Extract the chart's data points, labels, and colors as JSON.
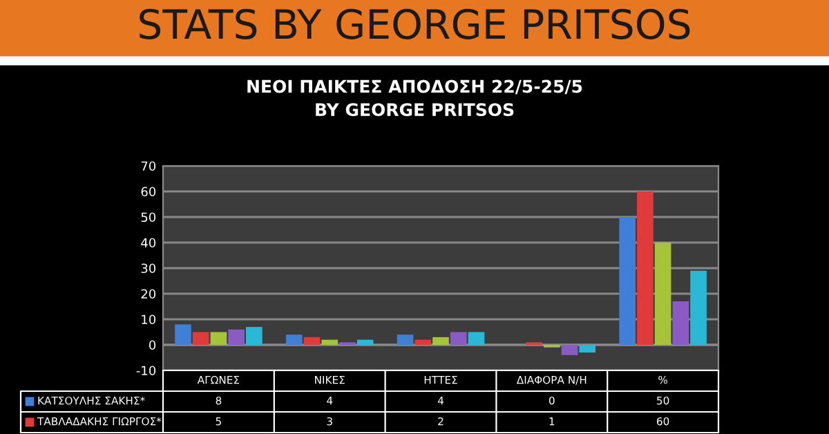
{
  "chart_data": {
    "type": "bar",
    "title": "STATS BY GEORGE PRITSOS",
    "subtitle": "ΝΕΟΙ ΠΑΙΚΤΕΣ ΑΠΟΔΟΣΗ 22/5-25/5\nBY GEORGE PRITSOS",
    "categories": [
      "ΑΓΩΝΕΣ",
      "ΝΙΚΕΣ",
      "ΗΤΤΕΣ",
      "ΔΙΑΦΟΡΑ Ν/Η",
      "%"
    ],
    "series": [
      {
        "name": "ΚΑΤΣΟΥΛΗΣ ΣΑΚΗΣ*",
        "color": "#3f7fd6",
        "values": [
          8,
          4,
          4,
          0,
          50
        ],
        "value_labels": [
          "8",
          "4",
          "4",
          "0",
          "50"
        ]
      },
      {
        "name": "ΤΑΒΛΑΔΑΚΗΣ ΓΙΩΡΓΟΣ*",
        "color": "#e03a3a",
        "values": [
          5,
          3,
          2,
          1,
          60
        ],
        "value_labels": [
          "5",
          "3",
          "2",
          "1",
          "60"
        ]
      },
      {
        "color": "#a6c43a",
        "values": [
          5,
          2,
          3,
          -1,
          40
        ]
      },
      {
        "color": "#8a5bc2",
        "values": [
          6,
          1,
          5,
          -4,
          17
        ]
      },
      {
        "color": "#2bb8d6",
        "values": [
          7,
          2,
          5,
          -3,
          29
        ]
      }
    ],
    "ylim": [
      -10,
      70
    ],
    "yticks": [
      -10,
      0,
      10,
      20,
      30,
      40,
      50,
      60,
      70
    ],
    "grid": "y",
    "legend": "bottom left"
  }
}
